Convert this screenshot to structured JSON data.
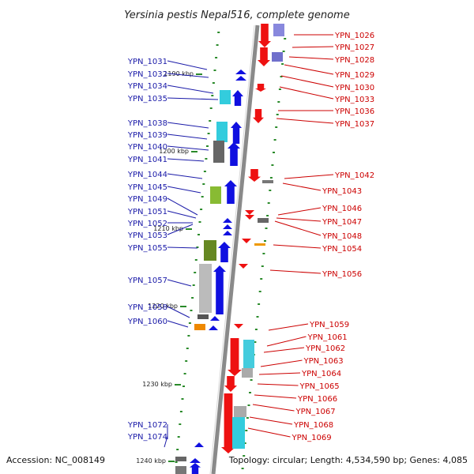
{
  "title": "Yersinia pestis Nepal516, complete genome",
  "footer": {
    "accession": "Accession: NC_008149",
    "summary": "Topology: circular; Length: 4,534,590 bp; Genes: 4,085"
  },
  "scale_labels": [
    "1190 kbp",
    "1200 kbp",
    "1210 kbp",
    "1220 kbp",
    "1230 kbp",
    "1240 kbp"
  ],
  "left_genes": [
    "YPN_1031",
    "YPN_1032",
    "YPN_1034",
    "YPN_1035",
    "YPN_1038",
    "YPN_1039",
    "YPN_1040",
    "YPN_1041",
    "YPN_1044",
    "YPN_1045",
    "YPN_1049",
    "YPN_1051",
    "YPN_1052",
    "YPN_1053",
    "YPN_1055",
    "YPN_1057",
    "YPN_1058",
    "YPN_1060",
    "YPN_1072",
    "YPN_1074"
  ],
  "right_genes": [
    "YPN_1026",
    "YPN_1027",
    "YPN_1028",
    "YPN_1029",
    "YPN_1030",
    "YPN_1033",
    "YPN_1036",
    "YPN_1037",
    "YPN_1042",
    "YPN_1043",
    "YPN_1046",
    "YPN_1047",
    "YPN_1048",
    "YPN_1054",
    "YPN_1056",
    "YPN_1059",
    "YPN_1061",
    "YPN_1062",
    "YPN_1063",
    "YPN_1064",
    "YPN_1065",
    "YPN_1066",
    "YPN_1067",
    "YPN_1068",
    "YPN_1069"
  ],
  "colors": {
    "forward_strand": "#1010e0",
    "reverse_strand": "#ee1111",
    "left_label": "#1a1aa8",
    "right_label": "#cc0000",
    "backbone": "#8a8a8a",
    "tick": "#2a8a2a"
  }
}
